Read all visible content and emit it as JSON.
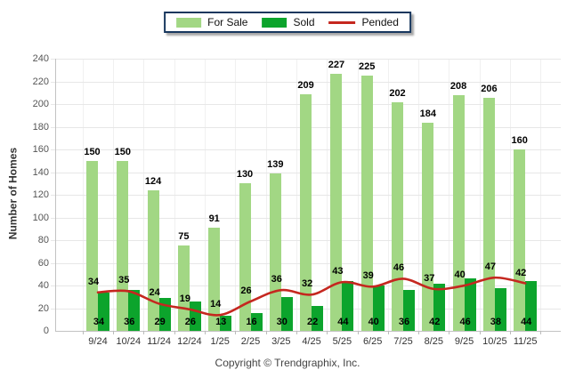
{
  "legend": {
    "items": [
      {
        "label": "For Sale",
        "color": "#a2d784",
        "type": "bar"
      },
      {
        "label": "Sold",
        "color": "#0ca42c",
        "type": "bar"
      },
      {
        "label": "Pended",
        "color": "#c5271f",
        "type": "line"
      }
    ]
  },
  "y_axis": {
    "title": "Number of Homes"
  },
  "footer": {
    "copyright": "Copyright © Trendgraphix, Inc."
  },
  "colors": {
    "for_sale": "#a2d784",
    "sold": "#0ca42c",
    "pended": "#c5271f",
    "legend_border": "#17375e"
  },
  "chart_data": {
    "type": "bar",
    "title": "",
    "categories": [
      "9/24",
      "10/24",
      "11/24",
      "12/24",
      "1/25",
      "2/25",
      "3/25",
      "4/25",
      "5/25",
      "6/25",
      "7/25",
      "8/25",
      "9/25",
      "10/25",
      "11/25"
    ],
    "series": [
      {
        "name": "For Sale",
        "type": "bar",
        "color": "#a2d784",
        "values": [
          150,
          150,
          124,
          75,
          91,
          130,
          139,
          209,
          227,
          225,
          202,
          184,
          208,
          206,
          160
        ]
      },
      {
        "name": "Sold",
        "type": "bar",
        "color": "#0ca42c",
        "values": [
          34,
          36,
          29,
          26,
          13,
          16,
          30,
          22,
          44,
          40,
          36,
          42,
          46,
          38,
          44
        ]
      },
      {
        "name": "Pended",
        "type": "line",
        "color": "#c5271f",
        "values": [
          34,
          35,
          24,
          19,
          14,
          26,
          36,
          32,
          43,
          39,
          46,
          37,
          40,
          47,
          42
        ]
      }
    ],
    "xlabel": "",
    "ylabel": "Number of Homes",
    "ylim": [
      0,
      240
    ],
    "ytick_step": 20,
    "grid": true,
    "legend_position": "top-center",
    "value_labels": true
  }
}
